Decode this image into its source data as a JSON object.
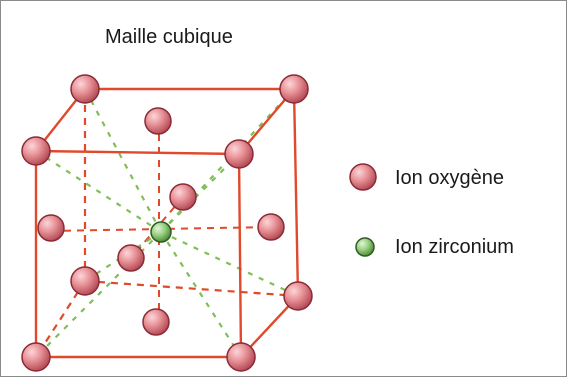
{
  "diagram": {
    "title": "Maille cubique",
    "legend": [
      {
        "label": "Ion oxygène",
        "color": "#e58a8f"
      },
      {
        "label": "Ion zirconium",
        "color": "#8ec97a"
      }
    ],
    "colors": {
      "edge": "#e0492a",
      "bond": "#7fbf55",
      "oxygen": "#e58a8f",
      "oxygen_stroke": "#8a2b36",
      "zirconium": "#8ec97a",
      "zirconium_stroke": "#2f5b23"
    }
  }
}
